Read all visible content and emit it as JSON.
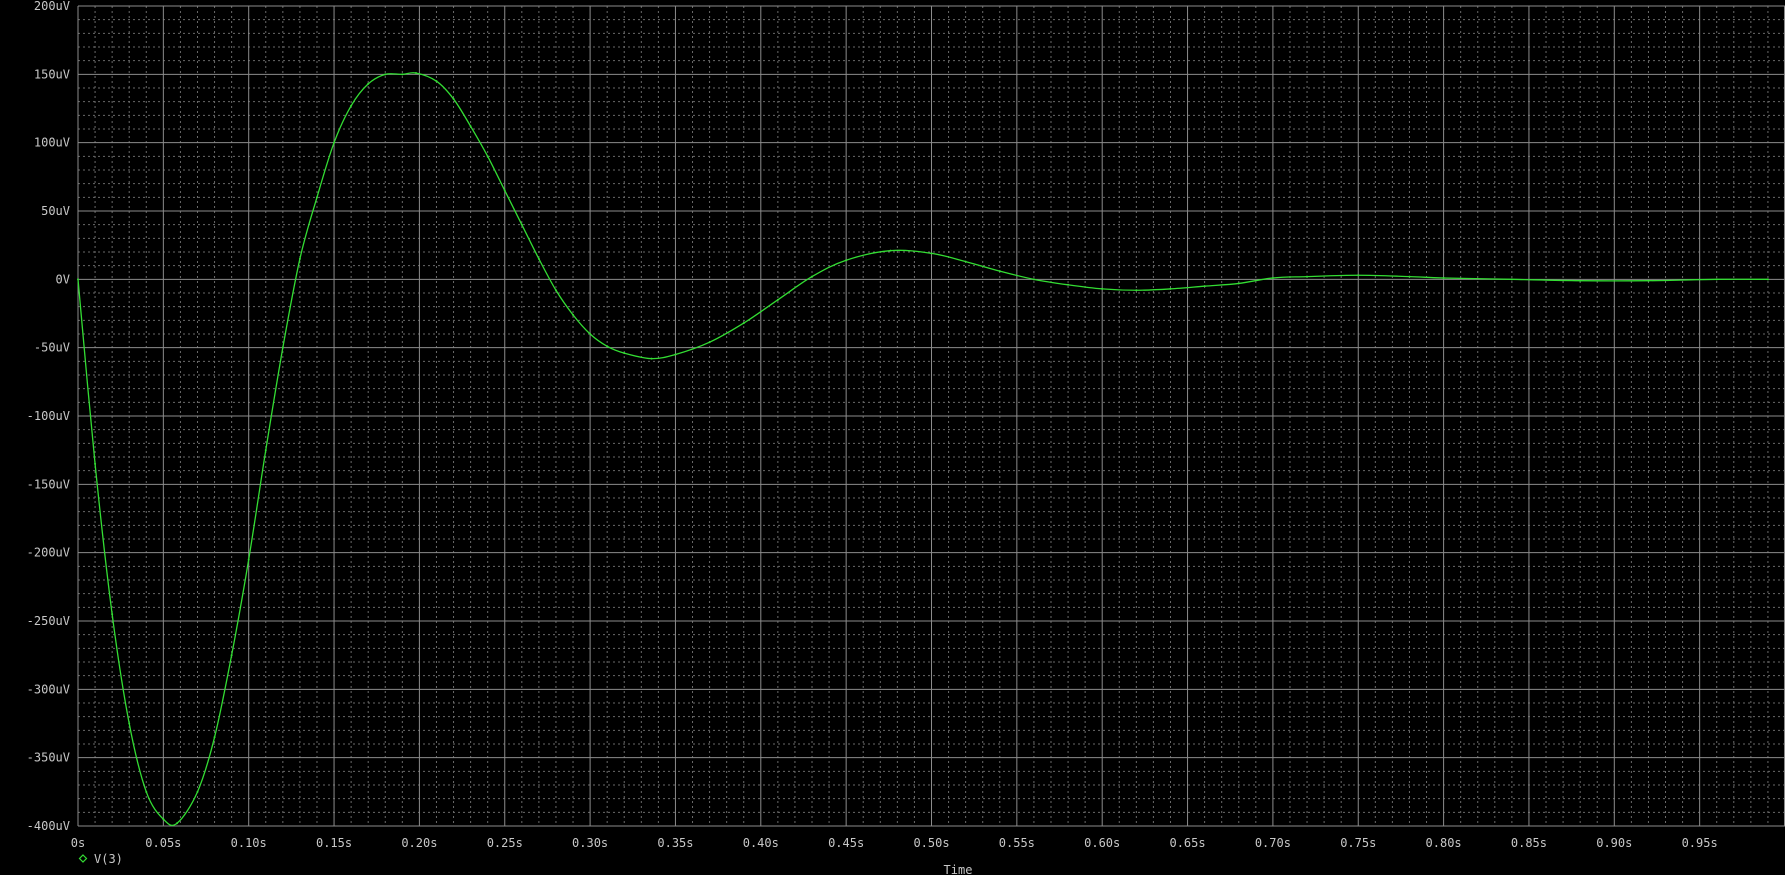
{
  "chart_data": {
    "type": "line",
    "xlabel": "Time",
    "x_unit": "s",
    "y_unit": "V",
    "xlim": [
      0,
      1.0
    ],
    "ylim": [
      -0.0004,
      0.0002
    ],
    "grid": true,
    "x_ticks": [
      {
        "value": 0.0,
        "label": "0s"
      },
      {
        "value": 0.05,
        "label": "0.05s"
      },
      {
        "value": 0.1,
        "label": "0.10s"
      },
      {
        "value": 0.15,
        "label": "0.15s"
      },
      {
        "value": 0.2,
        "label": "0.20s"
      },
      {
        "value": 0.25,
        "label": "0.25s"
      },
      {
        "value": 0.3,
        "label": "0.30s"
      },
      {
        "value": 0.35,
        "label": "0.35s"
      },
      {
        "value": 0.4,
        "label": "0.40s"
      },
      {
        "value": 0.45,
        "label": "0.45s"
      },
      {
        "value": 0.5,
        "label": "0.50s"
      },
      {
        "value": 0.55,
        "label": "0.55s"
      },
      {
        "value": 0.6,
        "label": "0.60s"
      },
      {
        "value": 0.65,
        "label": "0.65s"
      },
      {
        "value": 0.7,
        "label": "0.70s"
      },
      {
        "value": 0.75,
        "label": "0.75s"
      },
      {
        "value": 0.8,
        "label": "0.80s"
      },
      {
        "value": 0.85,
        "label": "0.85s"
      },
      {
        "value": 0.9,
        "label": "0.90s"
      },
      {
        "value": 0.95,
        "label": "0.95s"
      }
    ],
    "y_ticks": [
      {
        "value": 0.0002,
        "label": "200uV"
      },
      {
        "value": 0.00015,
        "label": "150uV"
      },
      {
        "value": 0.0001,
        "label": "100uV"
      },
      {
        "value": 5e-05,
        "label": "50uV"
      },
      {
        "value": 0.0,
        "label": "0V"
      },
      {
        "value": -5e-05,
        "label": "-50uV"
      },
      {
        "value": -0.0001,
        "label": "-100uV"
      },
      {
        "value": -0.00015,
        "label": "-150uV"
      },
      {
        "value": -0.0002,
        "label": "-200uV"
      },
      {
        "value": -0.00025,
        "label": "-250uV"
      },
      {
        "value": -0.0003,
        "label": "-300uV"
      },
      {
        "value": -0.00035,
        "label": "-350uV"
      },
      {
        "value": -0.0004,
        "label": "-400uV"
      }
    ],
    "series": [
      {
        "name": "V(3)",
        "color": "#33dd33",
        "x": [
          0,
          0.01,
          0.02,
          0.03,
          0.04,
          0.05,
          0.058,
          0.07,
          0.08,
          0.09,
          0.1,
          0.11,
          0.12,
          0.13,
          0.14,
          0.15,
          0.16,
          0.17,
          0.18,
          0.19,
          0.198,
          0.21,
          0.22,
          0.23,
          0.24,
          0.25,
          0.26,
          0.27,
          0.28,
          0.29,
          0.3,
          0.31,
          0.32,
          0.336,
          0.35,
          0.37,
          0.39,
          0.41,
          0.43,
          0.45,
          0.476,
          0.5,
          0.52,
          0.54,
          0.56,
          0.58,
          0.6,
          0.62,
          0.64,
          0.66,
          0.68,
          0.7,
          0.72,
          0.75,
          0.78,
          0.8,
          0.84,
          0.88,
          0.92,
          0.96,
          0.99
        ],
        "y": [
          0,
          -0.000135,
          -0.000245,
          -0.000325,
          -0.000375,
          -0.000395,
          -0.000398,
          -0.000375,
          -0.000335,
          -0.000275,
          -0.000205,
          -0.000125,
          -5e-05,
          1.5e-05,
          6e-05,
          0.0001,
          0.000127,
          0.000143,
          0.00015,
          0.00015,
          0.000151,
          0.000145,
          0.000132,
          0.000112,
          9e-05,
          6.5e-05,
          4e-05,
          1.5e-05,
          -8e-06,
          -2.6e-05,
          -4e-05,
          -4.9e-05,
          -5.4e-05,
          -5.8e-05,
          -5.5e-05,
          -4.6e-05,
          -3.2e-05,
          -1.5e-05,
          2e-06,
          1.4e-05,
          2.1e-05,
          1.9e-05,
          1.3e-05,
          6e-06,
          0.0,
          -4e-06,
          -7e-06,
          -8e-06,
          -7e-06,
          -5e-06,
          -3e-06,
          1e-06,
          2e-06,
          3e-06,
          2e-06,
          1e-06,
          0.0,
          -1e-06,
          -1e-06,
          0.0,
          0.0
        ]
      }
    ]
  }
}
